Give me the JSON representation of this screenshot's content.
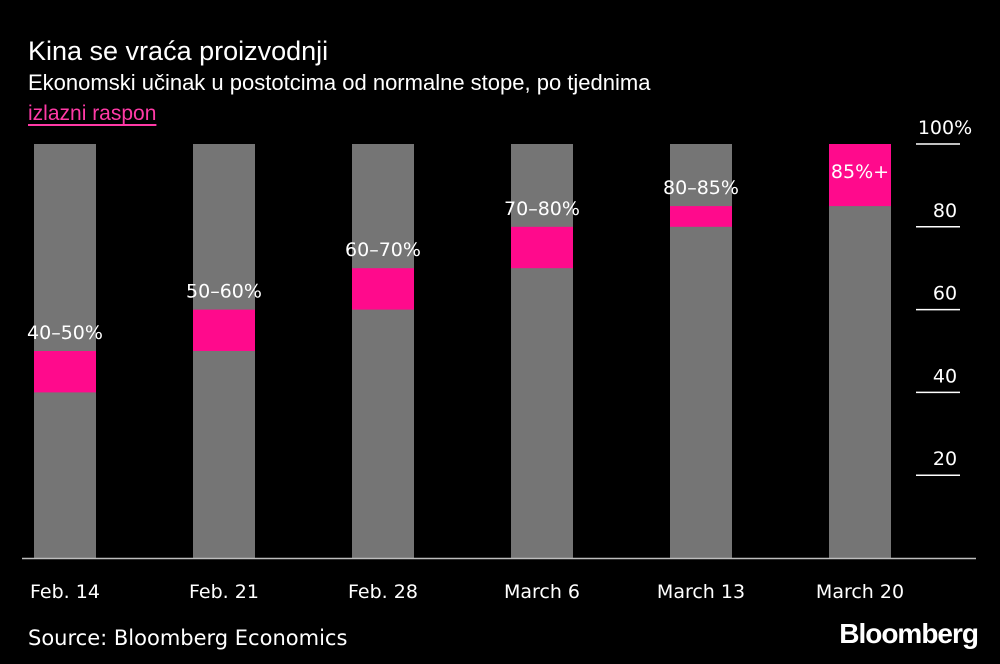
{
  "header": {
    "title": "Kina se vraća proizvodnji",
    "subtitle": "Ekonomski učinak u postotcima od normalne stope, po tjednima",
    "legend_label": "izlazni raspon"
  },
  "footer": {
    "source": "Source: Bloomberg Economics",
    "brand": "Bloomberg"
  },
  "colors": {
    "background": "#000000",
    "bar": "#757575",
    "range": "#ff0a8c",
    "text": "#ffffff",
    "legend": "#ff3aa6"
  },
  "chart_data": {
    "type": "bar",
    "title": "Kina se vraća proizvodnji",
    "subtitle": "Ekonomski učinak u postotcima od normalne stope, po tjednima",
    "categories": [
      "Feb. 14",
      "Feb. 21",
      "Feb. 28",
      "March 6",
      "March 13",
      "March 20"
    ],
    "ranges": [
      {
        "low": 40,
        "high": 50,
        "label": "40–50%"
      },
      {
        "low": 50,
        "high": 60,
        "label": "50–60%"
      },
      {
        "low": 60,
        "high": 70,
        "label": "60–70%"
      },
      {
        "low": 70,
        "high": 80,
        "label": "70–80%"
      },
      {
        "low": 80,
        "high": 85,
        "label": "80–85%"
      },
      {
        "low": 85,
        "high": 100,
        "label": "85%+"
      }
    ],
    "yticks": [
      "20",
      "40",
      "60",
      "80",
      "100%"
    ],
    "ytick_values": [
      20,
      40,
      60,
      80,
      100
    ],
    "ylim": [
      0,
      100
    ],
    "legend": "izlazni raspon",
    "grid": false
  }
}
